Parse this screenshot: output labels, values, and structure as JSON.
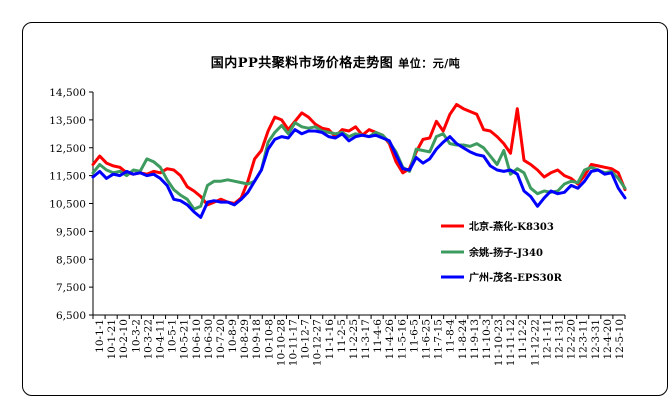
{
  "chart_data": {
    "type": "line",
    "title": "国内PP共聚料市场价格走势图",
    "unit_label": "单位：元/吨",
    "ylim": [
      6500,
      14500
    ],
    "yticks": [
      "6,500",
      "7,500",
      "8,500",
      "9,500",
      "10,500",
      "11,500",
      "12,500",
      "13,500",
      "14,500"
    ],
    "ytick_values": [
      6500,
      7500,
      8500,
      9500,
      10500,
      11500,
      12500,
      13500,
      14500
    ],
    "grid": false,
    "legend_position": "right-middle",
    "x_labels": [
      "10-1-1",
      "10-1-21",
      "10-2-10",
      "10-3-2",
      "10-3-22",
      "10-4-11",
      "10-5-1",
      "10-5-21",
      "10-6-10",
      "10-6-30",
      "10-7-20",
      "10-8-9",
      "10-8-29",
      "10-9-18",
      "10-10-8",
      "10-10-28",
      "10-11-17",
      "10-12-7",
      "10-12-27",
      "11-1-16",
      "11-2-5",
      "11-2-25",
      "11-3-17",
      "11-4-6",
      "11-4-26",
      "11-5-16",
      "11-6-5",
      "11-6-25",
      "11-7-15",
      "11-8-4",
      "11-8-24",
      "11-9-13",
      "11-10-3",
      "11-10-23",
      "11-11-12",
      "11-12-2",
      "11-12-22",
      "12-1-11",
      "12-1-31",
      "12-2-20",
      "12-3-11",
      "12-3-31",
      "12-4-20",
      "12-5-10"
    ],
    "series": [
      {
        "name": "北京-燕化-K8303",
        "color": "#ff0000",
        "values": [
          11900,
          12200,
          11950,
          11850,
          11800,
          11600,
          11550,
          11600,
          11550,
          11650,
          11600,
          11750,
          11700,
          11500,
          11100,
          10950,
          10750,
          10450,
          10550,
          10650,
          10550,
          10500,
          10700,
          11300,
          12100,
          12400,
          13100,
          13600,
          13500,
          13150,
          13450,
          13750,
          13600,
          13350,
          13200,
          13150,
          12900,
          13150,
          13100,
          13250,
          12950,
          13150,
          13050,
          12950,
          12650,
          12000,
          11600,
          11750,
          12350,
          12800,
          12850,
          13450,
          13100,
          13700,
          14050,
          13900,
          13800,
          13700,
          13150,
          13100,
          12900,
          12650,
          12300,
          13900,
          12050,
          11900,
          11700,
          11450,
          11600,
          11700,
          11500,
          11400,
          11200,
          11500,
          11900,
          11850,
          11800,
          11750,
          11600,
          11000
        ]
      },
      {
        "name": "余姚-扬子-J340",
        "color": "#3e9b5f",
        "values": [
          11600,
          11900,
          11700,
          11600,
          11650,
          11500,
          11700,
          11650,
          12100,
          12000,
          11800,
          11350,
          11000,
          10800,
          10650,
          10300,
          10400,
          11150,
          11300,
          11300,
          11350,
          11300,
          11250,
          11200,
          11300,
          11700,
          12700,
          13050,
          13300,
          13000,
          13400,
          13250,
          13200,
          13250,
          13100,
          13050,
          13000,
          13050,
          12900,
          13000,
          12950,
          12900,
          13050,
          12950,
          12700,
          12350,
          11800,
          11650,
          12450,
          12400,
          12350,
          12900,
          13000,
          12650,
          12600,
          12600,
          12550,
          12650,
          12500,
          12200,
          11900,
          12400,
          11550,
          11750,
          11600,
          11050,
          10850,
          10950,
          10900,
          10950,
          11200,
          11300,
          11250,
          11700,
          11800,
          11700,
          11600,
          11650,
          11400,
          11050
        ]
      },
      {
        "name": "广州-茂名-EPS30R",
        "color": "#0000ff",
        "values": [
          11450,
          11650,
          11400,
          11550,
          11500,
          11650,
          11550,
          11600,
          11500,
          11550,
          11400,
          11150,
          10650,
          10600,
          10450,
          10200,
          10000,
          10550,
          10600,
          10550,
          10550,
          10450,
          10650,
          10900,
          11300,
          11700,
          12450,
          12800,
          12900,
          12850,
          13150,
          13000,
          13100,
          13100,
          13050,
          12900,
          12850,
          13000,
          12750,
          12900,
          12950,
          12900,
          12950,
          12850,
          12750,
          12250,
          11750,
          11700,
          12150,
          11950,
          12100,
          12450,
          12700,
          12900,
          12650,
          12500,
          12350,
          12250,
          12200,
          11850,
          11700,
          11650,
          11700,
          11550,
          10950,
          10750,
          10400,
          10700,
          10950,
          10850,
          10900,
          11150,
          11050,
          11300,
          11650,
          11700,
          11550,
          11600,
          11050,
          10700
        ]
      }
    ]
  }
}
